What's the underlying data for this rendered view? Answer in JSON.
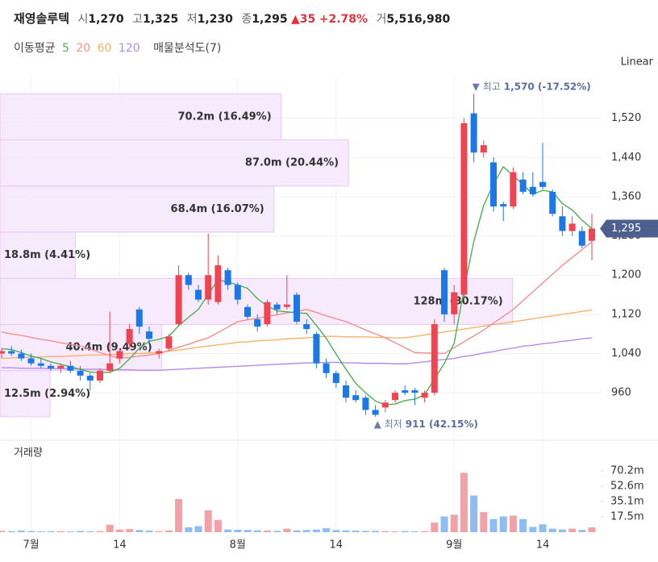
{
  "header": {
    "name": "재영솔루텍",
    "open_label": "시",
    "open": "1,270",
    "high_label": "고",
    "high": "1,325",
    "low_label": "저",
    "low": "1,230",
    "close_label": "종",
    "close": "1,295",
    "change": "▲35",
    "change_pct": "+2.78%",
    "volume_label": "거",
    "volume": "5,516,980"
  },
  "legend": {
    "ma_title": "이동평균",
    "profile": "매물분석도(7)"
  },
  "scale_mode": "Linear",
  "chart_data": [
    {
      "type": "candlestick",
      "categories": [
        null,
        null,
        null,
        "7월",
        null,
        null,
        null,
        null,
        null,
        null,
        null,
        null,
        "14",
        null,
        null,
        null,
        null,
        null,
        null,
        null,
        null,
        null,
        null,
        null,
        "8월",
        null,
        null,
        null,
        null,
        null,
        null,
        null,
        null,
        null,
        "14",
        null,
        null,
        null,
        null,
        null,
        null,
        null,
        null,
        null,
        null,
        null,
        "9월",
        null,
        null,
        null,
        null,
        null,
        null,
        null,
        null,
        "14",
        null,
        null,
        null,
        null,
        null
      ],
      "open": [
        1040,
        1045,
        1040,
        1030,
        1020,
        1015,
        1010,
        1015,
        1005,
        995,
        985,
        1005,
        1030,
        1060,
        1130,
        1085,
        1040,
        1050,
        1100,
        1200,
        1170,
        1150,
        1145,
        1210,
        1180,
        1135,
        1110,
        1100,
        1140,
        1135,
        1160,
        1100,
        1080,
        1020,
        1000,
        975,
        955,
        950,
        925,
        930,
        945,
        965,
        965,
        950,
        960,
        1210,
        1120,
        1160,
        1530,
        1450,
        1430,
        1345,
        1340,
        1395,
        1380,
        1390,
        1370,
        1320,
        1290,
        1290,
        1270
      ],
      "high": [
        1050,
        1055,
        1048,
        1040,
        1030,
        1020,
        1020,
        1025,
        1015,
        1000,
        1010,
        1125,
        1050,
        1100,
        1135,
        1095,
        1050,
        1080,
        1220,
        1205,
        1180,
        1285,
        1240,
        1215,
        1185,
        1140,
        1120,
        1150,
        1145,
        1200,
        1165,
        1110,
        1085,
        1030,
        1005,
        985,
        965,
        955,
        935,
        945,
        965,
        975,
        970,
        965,
        1110,
        1215,
        1180,
        1520,
        1570,
        1475,
        1440,
        1350,
        1420,
        1410,
        1410,
        1470,
        1375,
        1340,
        1320,
        1300,
        1325
      ],
      "low": [
        1030,
        1035,
        1025,
        1015,
        1010,
        1005,
        1000,
        1000,
        985,
        965,
        980,
        1000,
        1020,
        1050,
        1080,
        1060,
        1030,
        1045,
        1095,
        1170,
        1145,
        1140,
        1140,
        1170,
        1140,
        1110,
        1085,
        1095,
        1120,
        1130,
        1100,
        1080,
        1010,
        990,
        970,
        940,
        940,
        915,
        911,
        920,
        940,
        955,
        935,
        940,
        955,
        1105,
        1100,
        1150,
        1430,
        1440,
        1330,
        1310,
        1335,
        1365,
        1360,
        1375,
        1320,
        1280,
        1280,
        1255,
        1230
      ],
      "close": [
        1045,
        1040,
        1030,
        1020,
        1015,
        1010,
        1015,
        1005,
        995,
        985,
        1005,
        1020,
        1045,
        1090,
        1095,
        1070,
        1045,
        1075,
        1200,
        1180,
        1150,
        1200,
        1220,
        1180,
        1150,
        1115,
        1095,
        1145,
        1130,
        1140,
        1105,
        1090,
        1020,
        1000,
        980,
        950,
        945,
        925,
        915,
        940,
        960,
        960,
        960,
        960,
        1100,
        1120,
        1165,
        1510,
        1450,
        1465,
        1340,
        1340,
        1410,
        1370,
        1365,
        1380,
        1325,
        1290,
        1305,
        1260,
        1295
      ],
      "colors": {
        "up": "#f04452",
        "down": "#1b78e8"
      },
      "series": [
        {
          "name": "5",
          "color": "#4cb050",
          "values": [
            1050,
            1048,
            1042,
            1035,
            1030,
            1023,
            1018,
            1013,
            1008,
            1002,
            1001,
            1002,
            1010,
            1029,
            1051,
            1065,
            1069,
            1075,
            1097,
            1114,
            1130,
            1161,
            1190,
            1186,
            1180,
            1173,
            1152,
            1137,
            1127,
            1125,
            1123,
            1122,
            1097,
            1071,
            1039,
            1008,
            979,
            960,
            943,
            935,
            937,
            944,
            947,
            956,
            988,
            1020,
            1061,
            1171,
            1269,
            1342,
            1386,
            1421,
            1403,
            1385,
            1365,
            1373,
            1370,
            1346,
            1333,
            1312,
            1295
          ]
        },
        {
          "name": "20",
          "color": "#f29090",
          "values": [
            1084,
            1080,
            1077,
            1073,
            1069,
            1066,
            1062,
            1059,
            1055,
            1049,
            1042,
            1036,
            1030,
            1032,
            1035,
            1037,
            1040,
            1046,
            1053,
            1059,
            1066,
            1072,
            1083,
            1094,
            1105,
            1109,
            1112,
            1116,
            1119,
            1123,
            1126,
            1130,
            1124,
            1117,
            1111,
            1105,
            1097,
            1088,
            1080,
            1072,
            1062,
            1052,
            1042,
            1041,
            1041,
            1040,
            1052,
            1064,
            1076,
            1088,
            1102,
            1116,
            1130,
            1148,
            1166,
            1184,
            1202,
            1220,
            1236,
            1252,
            1268
          ]
        },
        {
          "name": "60",
          "color": "#f6b26b",
          "values": [
            1030,
            1031,
            1032,
            1032,
            1033,
            1034,
            1034,
            1035,
            1036,
            1037,
            1037,
            1038,
            1039,
            1040,
            1040,
            1041,
            1042,
            1045,
            1047,
            1050,
            1053,
            1055,
            1058,
            1060,
            1063,
            1064,
            1066,
            1067,
            1068,
            1070,
            1071,
            1072,
            1074,
            1075,
            1075,
            1074,
            1074,
            1074,
            1073,
            1073,
            1072,
            1072,
            1075,
            1078,
            1081,
            1084,
            1087,
            1090,
            1093,
            1096,
            1099,
            1102,
            1105,
            1108,
            1111,
            1114,
            1117,
            1120,
            1123,
            1126,
            1129
          ]
        },
        {
          "name": "120",
          "color": "#b48ae8",
          "values": [
            1011,
            1011,
            1010,
            1010,
            1010,
            1009,
            1009,
            1009,
            1008,
            1008,
            1008,
            1007,
            1007,
            1007,
            1006,
            1006,
            1006,
            1007,
            1008,
            1009,
            1010,
            1011,
            1012,
            1013,
            1014,
            1015,
            1016,
            1017,
            1018,
            1019,
            1020,
            1021,
            1021,
            1022,
            1022,
            1021,
            1021,
            1020,
            1020,
            1020,
            1019,
            1019,
            1021,
            1023,
            1026,
            1028,
            1030,
            1034,
            1037,
            1041,
            1044,
            1048,
            1051,
            1055,
            1057,
            1060,
            1062,
            1065,
            1067,
            1070,
            1072
          ]
        }
      ],
      "volume_profile": {
        "bins": [
          911,
          1005.1,
          1099.3,
          1193.4,
          1287.6,
          1381.7,
          1475.9,
          1570
        ],
        "values": [
          12.5,
          40.4,
          128,
          18.8,
          68.4,
          87.0,
          70.2
        ],
        "value_labels": [
          "12.5m (2.94%)",
          "40.4m (9.49%)",
          "128m (30.17%)",
          "18.8m (4.41%)",
          "68.4m (16.07%)",
          "87.0m (20.44%)",
          "70.2m (16.49%)"
        ],
        "xlim": [
          0,
          150
        ],
        "color": "#f4e6fb"
      },
      "ylim": [
        873,
        1605
      ],
      "yticks": [
        {
          "value": 960,
          "label": "960"
        },
        {
          "value": 1040,
          "label": "1,040"
        },
        {
          "value": 1120,
          "label": "1,120"
        },
        {
          "value": 1200,
          "label": "1,200"
        },
        {
          "value": 1280,
          "label": "1,280"
        },
        {
          "value": 1360,
          "label": "1,360"
        },
        {
          "value": 1440,
          "label": "1,440"
        },
        {
          "value": 1520,
          "label": "1,520"
        }
      ],
      "last_label": "1,295",
      "annotations": {
        "high_marker": "▼ 최고",
        "high_text": "1,570 (-17.52%)",
        "low_marker": "▲ 최저",
        "low_text": "911 (42.15%)"
      },
      "grid": true
    },
    {
      "type": "bar",
      "title": "거래량",
      "values": [
        1.5,
        1.2,
        1.8,
        1.3,
        1.0,
        1.1,
        1.2,
        0.9,
        1.5,
        1.0,
        1.3,
        8.5,
        3.0,
        3.5,
        2.5,
        1.8,
        1.2,
        2.0,
        38.0,
        5.5,
        7.0,
        25.0,
        14.0,
        3.0,
        2.8,
        2.5,
        2.2,
        2.0,
        1.5,
        4.0,
        2.0,
        2.5,
        3.0,
        4.5,
        2.5,
        2.0,
        1.8,
        1.5,
        1.5,
        1.2,
        1.0,
        1.3,
        1.0,
        1.2,
        11.0,
        18.0,
        20.0,
        68.0,
        42.0,
        23.0,
        15.0,
        18.0,
        19.0,
        15.0,
        6.0,
        9.0,
        4.0,
        3.0,
        4.0,
        2.5,
        5.5
      ],
      "colors": {
        "up": "#f2a2a7",
        "down": "#8ebdf2"
      },
      "ylim": [
        0,
        80
      ],
      "yticks": [
        {
          "value": 17.5,
          "label": "17.5m"
        },
        {
          "value": 35.1,
          "label": "35.1m"
        },
        {
          "value": 52.6,
          "label": "52.6m"
        },
        {
          "value": 70.2,
          "label": "70.2m"
        }
      ]
    }
  ]
}
